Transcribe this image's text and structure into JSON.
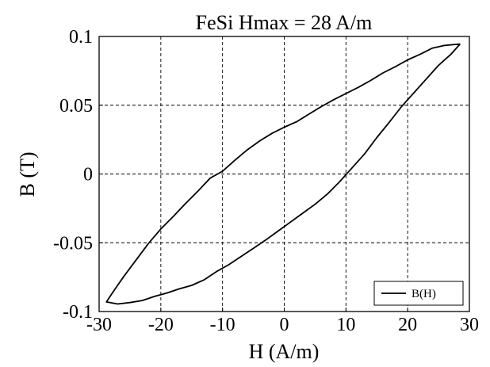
{
  "chart_data": {
    "type": "line",
    "title": "FeSi Hmax = 28 A/m",
    "xlabel": "H (A/m)",
    "ylabel": "B (T)",
    "xlim": [
      -30,
      30
    ],
    "ylim": [
      -0.1,
      0.1
    ],
    "x_ticks": [
      -30,
      -20,
      -10,
      0,
      10,
      20,
      30
    ],
    "y_ticks": [
      -0.1,
      -0.05,
      0,
      0.05,
      0.1
    ],
    "x_tick_labels": [
      "-30",
      "-20",
      "-10",
      "0",
      "10",
      "20",
      "30"
    ],
    "y_tick_labels": [
      "-0.1",
      "-0.05",
      "0",
      "0.05",
      "0.1"
    ],
    "grid": true,
    "legend_position": "bottom-right",
    "series": [
      {
        "name": "B(H)",
        "color": "#000000",
        "descending_branch": [
          [
            28.5,
            0.0945
          ],
          [
            26,
            0.0935
          ],
          [
            24,
            0.0915
          ],
          [
            22,
            0.087
          ],
          [
            20,
            0.083
          ],
          [
            18,
            0.078
          ],
          [
            16,
            0.0735
          ],
          [
            14,
            0.068
          ],
          [
            12,
            0.063
          ],
          [
            10,
            0.0585
          ],
          [
            8,
            0.054
          ],
          [
            6,
            0.049
          ],
          [
            4,
            0.0435
          ],
          [
            2,
            0.038
          ],
          [
            0,
            0.034
          ],
          [
            -2,
            0.0295
          ],
          [
            -4,
            0.024
          ],
          [
            -6,
            0.0175
          ],
          [
            -8,
            0.01
          ],
          [
            -10,
            0.002
          ],
          [
            -12,
            -0.003
          ],
          [
            -14,
            -0.0125
          ],
          [
            -16,
            -0.0215
          ],
          [
            -18,
            -0.031
          ],
          [
            -20,
            -0.04
          ],
          [
            -22,
            -0.0505
          ],
          [
            -24,
            -0.0625
          ],
          [
            -26,
            -0.0745
          ],
          [
            -27,
            -0.081
          ],
          [
            -28,
            -0.0875
          ],
          [
            -28.8,
            -0.093
          ]
        ],
        "ascending_branch": [
          [
            -28.8,
            -0.093
          ],
          [
            -27,
            -0.0945
          ],
          [
            -25,
            -0.0935
          ],
          [
            -23,
            -0.092
          ],
          [
            -21,
            -0.089
          ],
          [
            -19,
            -0.0865
          ],
          [
            -17,
            -0.0835
          ],
          [
            -15,
            -0.081
          ],
          [
            -13,
            -0.077
          ],
          [
            -11,
            -0.071
          ],
          [
            -9,
            -0.066
          ],
          [
            -7,
            -0.06
          ],
          [
            -5,
            -0.054
          ],
          [
            -3,
            -0.048
          ],
          [
            -1,
            -0.0415
          ],
          [
            1,
            -0.035
          ],
          [
            3,
            -0.0285
          ],
          [
            5,
            -0.022
          ],
          [
            7,
            -0.0145
          ],
          [
            9,
            -0.0055
          ],
          [
            11,
            0.0045
          ],
          [
            13,
            0.0145
          ],
          [
            15,
            0.0265
          ],
          [
            17,
            0.0375
          ],
          [
            19,
            0.049
          ],
          [
            21,
            0.059
          ],
          [
            23,
            0.069
          ],
          [
            25,
            0.079
          ],
          [
            27,
            0.087
          ],
          [
            28.5,
            0.0945
          ]
        ]
      }
    ]
  }
}
